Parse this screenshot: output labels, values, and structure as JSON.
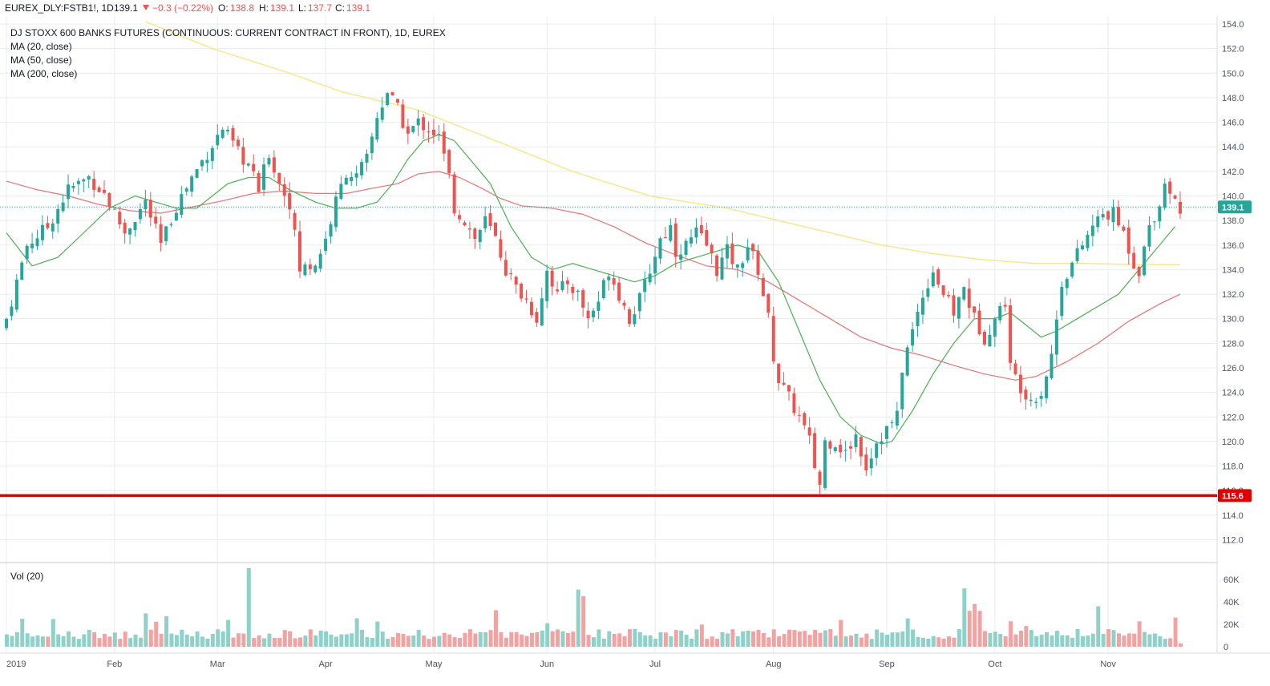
{
  "header": {
    "symbol": "EUREX_DLY:FSTB1!, 1D",
    "last": "139.1",
    "change": "−0.3 (−0.22%)",
    "o_label": "O:",
    "o_value": "138.8",
    "h_label": "H:",
    "h_value": "139.1",
    "l_label": "L:",
    "l_value": "137.7",
    "c_label": "C:",
    "c_value": "139.1"
  },
  "legend": {
    "title": "DJ STOXX 600 BANKS FUTURES (CONTINUOUS: CURRENT CONTRACT IN FRONT), 1D, EUREX",
    "ma20": "MA (20, close)",
    "ma50": "MA (50, close)",
    "ma200": "MA (200, close)",
    "vol": "Vol (20)"
  },
  "colors": {
    "up": "#26a69a",
    "down": "#ef5350",
    "ma20": "#4caf50",
    "ma50": "#e57373",
    "ma200": "#f5e88c",
    "support": "#e00000",
    "grid": "#e8ecf0"
  },
  "chart_data": {
    "type": "candlestick",
    "y_axis": {
      "ticks": [
        "154.0",
        "152.0",
        "150.0",
        "148.0",
        "146.0",
        "144.0",
        "142.0",
        "140.0",
        "138.0",
        "136.0",
        "134.0",
        "132.0",
        "130.0",
        "128.0",
        "126.0",
        "124.0",
        "122.0",
        "120.0",
        "118.0",
        "116.0",
        "114.0",
        "112.0"
      ],
      "min": 110.5,
      "max": 154.3
    },
    "x_axis": {
      "labels": [
        "2019",
        "Feb",
        "Mar",
        "Apr",
        "May",
        "Jun",
        "Jul",
        "Aug",
        "Sep",
        "Oct",
        "Nov"
      ],
      "label_day_index": [
        0,
        21,
        41,
        62,
        83,
        105,
        126,
        149,
        171,
        192,
        214
      ]
    },
    "vol_axis": {
      "ticks": [
        "60K",
        "40K",
        "20K",
        "0"
      ],
      "max": 70000
    },
    "last_price": {
      "value": 139.1,
      "label": "139.1"
    },
    "support_line": {
      "value": 115.6,
      "label": "115.6"
    },
    "close_path": [
      [
        0,
        130
      ],
      [
        4,
        136
      ],
      [
        8,
        137.5
      ],
      [
        12,
        140.5
      ],
      [
        16,
        141.5
      ],
      [
        19,
        140.2
      ],
      [
        23,
        137
      ],
      [
        27,
        139.5
      ],
      [
        30,
        136
      ],
      [
        33,
        139.2
      ],
      [
        36,
        141.5
      ],
      [
        39,
        143.5
      ],
      [
        42,
        145.5
      ],
      [
        45,
        143.5
      ],
      [
        47,
        142.5
      ],
      [
        49,
        140.5
      ],
      [
        51,
        143.5
      ],
      [
        53,
        141
      ],
      [
        55,
        139.5
      ],
      [
        57,
        134
      ],
      [
        60,
        134.5
      ],
      [
        62,
        136.5
      ],
      [
        64,
        139.5
      ],
      [
        66,
        142
      ],
      [
        68,
        141.5
      ],
      [
        70,
        143
      ],
      [
        72,
        146.5
      ],
      [
        74,
        148.5
      ],
      [
        76,
        147
      ],
      [
        78,
        145
      ],
      [
        80,
        146
      ],
      [
        82,
        145.5
      ],
      [
        84,
        144.8
      ],
      [
        86,
        141.5
      ],
      [
        87,
        139
      ],
      [
        89,
        138
      ],
      [
        91,
        136.5
      ],
      [
        93,
        138
      ],
      [
        95,
        136.5
      ],
      [
        97,
        134
      ],
      [
        99,
        132.5
      ],
      [
        101,
        131.5
      ],
      [
        103,
        130
      ],
      [
        105,
        134
      ],
      [
        107,
        132
      ],
      [
        109,
        133
      ],
      [
        111,
        132
      ],
      [
        113,
        130
      ],
      [
        115,
        131.5
      ],
      [
        117,
        134
      ],
      [
        119,
        132
      ],
      [
        121,
        130
      ],
      [
        123,
        131.5
      ],
      [
        125,
        134
      ],
      [
        127,
        136.5
      ],
      [
        129,
        137.5
      ],
      [
        130,
        135.5
      ],
      [
        132,
        136
      ],
      [
        134,
        137
      ],
      [
        136,
        136
      ],
      [
        138,
        134
      ],
      [
        140,
        135.5
      ],
      [
        142,
        134
      ],
      [
        144,
        136
      ],
      [
        146,
        134
      ],
      [
        148,
        130
      ],
      [
        149,
        127
      ],
      [
        150,
        125
      ],
      [
        152,
        123.5
      ],
      [
        154,
        122
      ],
      [
        156,
        120
      ],
      [
        157,
        118
      ],
      [
        158,
        116.5
      ],
      [
        159,
        120
      ],
      [
        161,
        120
      ],
      [
        163,
        119
      ],
      [
        165,
        120.5
      ],
      [
        167,
        118
      ],
      [
        169,
        120
      ],
      [
        171,
        121
      ],
      [
        173,
        122
      ],
      [
        174,
        126
      ],
      [
        176,
        129
      ],
      [
        178,
        132
      ],
      [
        180,
        134
      ],
      [
        182,
        132
      ],
      [
        184,
        130.5
      ],
      [
        186,
        132.5
      ],
      [
        188,
        130
      ],
      [
        190,
        128.5
      ],
      [
        192,
        130
      ],
      [
        194,
        131.5
      ],
      [
        195,
        126
      ],
      [
        197,
        124.5
      ],
      [
        199,
        123.5
      ],
      [
        201,
        124
      ],
      [
        203,
        127
      ],
      [
        205,
        133
      ],
      [
        207,
        134.5
      ],
      [
        209,
        136
      ],
      [
        211,
        137.5
      ],
      [
        213,
        138.5
      ],
      [
        215,
        138.5
      ],
      [
        217,
        137
      ],
      [
        219,
        134.5
      ],
      [
        220,
        134
      ],
      [
        222,
        137.5
      ],
      [
        224,
        139.5
      ],
      [
        225,
        141
      ],
      [
        226,
        140.5
      ],
      [
        227,
        139.5
      ],
      [
        228,
        139.1
      ]
    ],
    "ma20_path": [
      [
        0,
        137
      ],
      [
        5,
        134.3
      ],
      [
        10,
        135
      ],
      [
        15,
        137
      ],
      [
        20,
        139
      ],
      [
        25,
        140
      ],
      [
        29,
        139.5
      ],
      [
        33,
        139
      ],
      [
        37,
        139
      ],
      [
        40,
        140
      ],
      [
        43,
        141
      ],
      [
        47,
        141.5
      ],
      [
        51,
        141.5
      ],
      [
        55,
        140.5
      ],
      [
        60,
        139.5
      ],
      [
        64,
        139
      ],
      [
        68,
        139
      ],
      [
        72,
        139.5
      ],
      [
        75,
        141
      ],
      [
        78,
        143
      ],
      [
        81,
        144.5
      ],
      [
        84,
        145
      ],
      [
        87,
        144.5
      ],
      [
        90,
        143
      ],
      [
        94,
        141
      ],
      [
        98,
        137.5
      ],
      [
        102,
        135
      ],
      [
        106,
        134
      ],
      [
        110,
        134.5
      ],
      [
        114,
        134
      ],
      [
        118,
        133.5
      ],
      [
        122,
        133
      ],
      [
        126,
        133.5
      ],
      [
        130,
        134.5
      ],
      [
        134,
        135
      ],
      [
        138,
        135.5
      ],
      [
        142,
        136
      ],
      [
        146,
        135.5
      ],
      [
        150,
        133
      ],
      [
        154,
        129
      ],
      [
        158,
        125
      ],
      [
        162,
        122
      ],
      [
        166,
        120.5
      ],
      [
        170,
        119.8
      ],
      [
        172,
        120
      ],
      [
        176,
        122.5
      ],
      [
        180,
        125.5
      ],
      [
        184,
        128
      ],
      [
        188,
        130
      ],
      [
        192,
        130
      ],
      [
        195,
        130.5
      ],
      [
        198,
        129.5
      ],
      [
        201,
        128.5
      ],
      [
        204,
        129
      ],
      [
        208,
        130
      ],
      [
        212,
        131
      ],
      [
        216,
        132
      ],
      [
        220,
        134
      ],
      [
        224,
        136
      ],
      [
        227,
        137.5
      ]
    ],
    "ma50_path": [
      [
        0,
        141.2
      ],
      [
        6,
        140.5
      ],
      [
        12,
        140
      ],
      [
        18,
        139.3
      ],
      [
        24,
        138.8
      ],
      [
        30,
        138.6
      ],
      [
        36,
        139.1
      ],
      [
        42,
        139.6
      ],
      [
        48,
        140.2
      ],
      [
        54,
        140.4
      ],
      [
        60,
        140.2
      ],
      [
        66,
        140.2
      ],
      [
        72,
        140.7
      ],
      [
        76,
        141
      ],
      [
        80,
        141.8
      ],
      [
        84,
        142
      ],
      [
        88,
        141.5
      ],
      [
        92,
        140.7
      ],
      [
        96,
        139.8
      ],
      [
        100,
        139.2
      ],
      [
        106,
        139
      ],
      [
        112,
        138.5
      ],
      [
        118,
        137.5
      ],
      [
        124,
        136.2
      ],
      [
        130,
        135.2
      ],
      [
        136,
        134.3
      ],
      [
        142,
        134
      ],
      [
        148,
        133
      ],
      [
        154,
        131.5
      ],
      [
        160,
        130
      ],
      [
        166,
        128.5
      ],
      [
        172,
        127.6
      ],
      [
        178,
        127
      ],
      [
        184,
        126.2
      ],
      [
        190,
        125.5
      ],
      [
        196,
        125
      ],
      [
        200,
        125.3
      ],
      [
        206,
        126.5
      ],
      [
        212,
        128
      ],
      [
        218,
        129.8
      ],
      [
        224,
        131.2
      ],
      [
        228,
        132
      ]
    ],
    "ma200_path": [
      [
        27,
        154.2
      ],
      [
        40,
        152
      ],
      [
        55,
        150
      ],
      [
        65,
        148.5
      ],
      [
        80,
        147
      ],
      [
        95,
        144.5
      ],
      [
        110,
        142
      ],
      [
        125,
        140
      ],
      [
        140,
        139
      ],
      [
        150,
        138
      ],
      [
        160,
        137
      ],
      [
        170,
        136
      ],
      [
        180,
        135.3
      ],
      [
        190,
        134.8
      ],
      [
        200,
        134.5
      ],
      [
        210,
        134.5
      ],
      [
        220,
        134.4
      ],
      [
        228,
        134.4
      ]
    ]
  }
}
